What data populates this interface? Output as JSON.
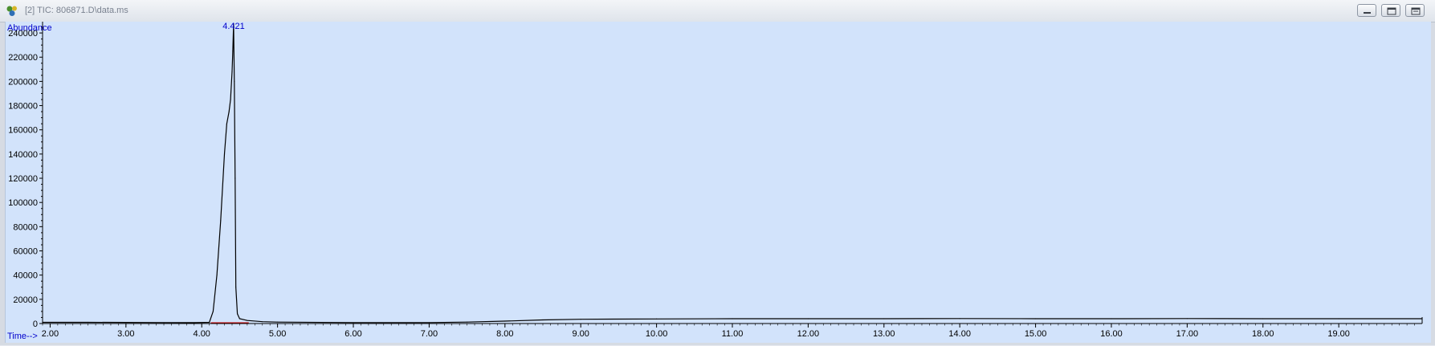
{
  "window": {
    "title": "[2] TIC: 806871.D\\data.ms",
    "buttons": [
      "minimize",
      "restore",
      "close"
    ]
  },
  "colors": {
    "plot_background": "#d2e3fb",
    "trace": "#000000",
    "axis_label": "#0000cc",
    "peak_label": "#0000cc",
    "baseline_marker": "#cc0000"
  },
  "chart_data": {
    "type": "line",
    "title": "",
    "xlabel": "Time-->",
    "ylabel": "Abundance",
    "xlim": [
      1.9,
      20.1
    ],
    "ylim": [
      0,
      248000
    ],
    "x_ticks": [
      "2.00",
      "3.00",
      "4.00",
      "5.00",
      "6.00",
      "7.00",
      "8.00",
      "9.00",
      "10.00",
      "11.00",
      "12.00",
      "13.00",
      "14.00",
      "15.00",
      "16.00",
      "17.00",
      "18.00",
      "19.00"
    ],
    "y_ticks": [
      "0",
      "20000",
      "40000",
      "60000",
      "80000",
      "100000",
      "120000",
      "140000",
      "160000",
      "180000",
      "200000",
      "220000",
      "240000"
    ],
    "grid": false,
    "annotations": [
      {
        "text": "4.421",
        "x": 4.421,
        "y": 248000
      }
    ],
    "series": [
      {
        "x": [
          1.9,
          2.5,
          3.0,
          3.5,
          3.9,
          4.1,
          4.15,
          4.2,
          4.25,
          4.3,
          4.33,
          4.36,
          4.38,
          4.4,
          4.41,
          4.42,
          4.43,
          4.44,
          4.45,
          4.47,
          4.5,
          4.6,
          4.8,
          5.0,
          6.0,
          7.0,
          7.5,
          8.0,
          8.5,
          9.0,
          10.0,
          11.0,
          12.0,
          13.0,
          14.0,
          15.0,
          16.0,
          17.0,
          18.0,
          19.0,
          20.1
        ],
        "values": [
          1000,
          1000,
          900,
          800,
          700,
          1000,
          10000,
          40000,
          85000,
          140000,
          165000,
          175000,
          185000,
          208000,
          225000,
          248000,
          200000,
          120000,
          30000,
          8000,
          4000,
          2500,
          1500,
          1200,
          800,
          800,
          1200,
          2000,
          3000,
          3500,
          3800,
          4000,
          4000,
          4000,
          4100,
          4000,
          4000,
          4100,
          4000,
          4000,
          4000
        ]
      }
    ]
  }
}
